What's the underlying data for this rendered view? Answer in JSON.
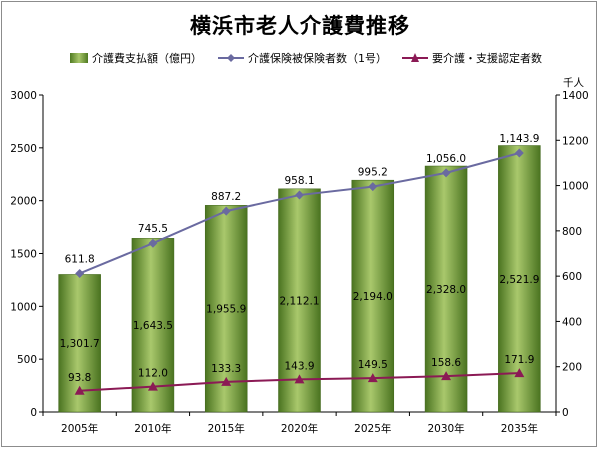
{
  "chart_data": {
    "type": "bar",
    "title": "横浜市老人介護費推移",
    "categories": [
      "2005年",
      "2010年",
      "2015年",
      "2020年",
      "2025年",
      "2030年",
      "2035年"
    ],
    "series": [
      {
        "name": "介護費支払額（億円）",
        "kind": "bar",
        "axis": "left",
        "values": [
          1301.7,
          1643.5,
          1955.9,
          2112.1,
          2194.0,
          2328.0,
          2521.9
        ],
        "labels": [
          "1,301.7",
          "1,643.5",
          "1,955.9",
          "2,112.1",
          "2,194.0",
          "2,328.0",
          "2,521.9"
        ]
      },
      {
        "name": "介護保険被保険者数（1号）",
        "kind": "line",
        "axis": "right",
        "values": [
          611.8,
          745.5,
          887.2,
          958.1,
          995.2,
          1056.0,
          1143.9
        ],
        "labels": [
          "611.8",
          "745.5",
          "887.2",
          "958.1",
          "995.2",
          "1,056.0",
          "1,143.9"
        ]
      },
      {
        "name": "要介護・支援認定者数",
        "kind": "line",
        "axis": "right",
        "values": [
          93.8,
          112.0,
          133.3,
          143.9,
          149.5,
          158.6,
          171.9
        ],
        "labels": [
          "93.8",
          "112.0",
          "133.3",
          "143.9",
          "149.5",
          "158.6",
          "171.9"
        ]
      }
    ],
    "y_left": {
      "min": 0,
      "max": 3000,
      "ticks": [
        "0",
        "500",
        "1000",
        "1500",
        "2000",
        "2500",
        "3000"
      ]
    },
    "y_right": {
      "min": 0,
      "max": 1400,
      "ticks": [
        "0",
        "200",
        "400",
        "600",
        "800",
        "1000",
        "1200",
        "1400"
      ],
      "unit": "千人"
    },
    "grid": false,
    "legend": "top",
    "colors": {
      "bar": "#6e9a3a",
      "line1": "#6a6aa0",
      "line2": "#8b1a55"
    }
  }
}
